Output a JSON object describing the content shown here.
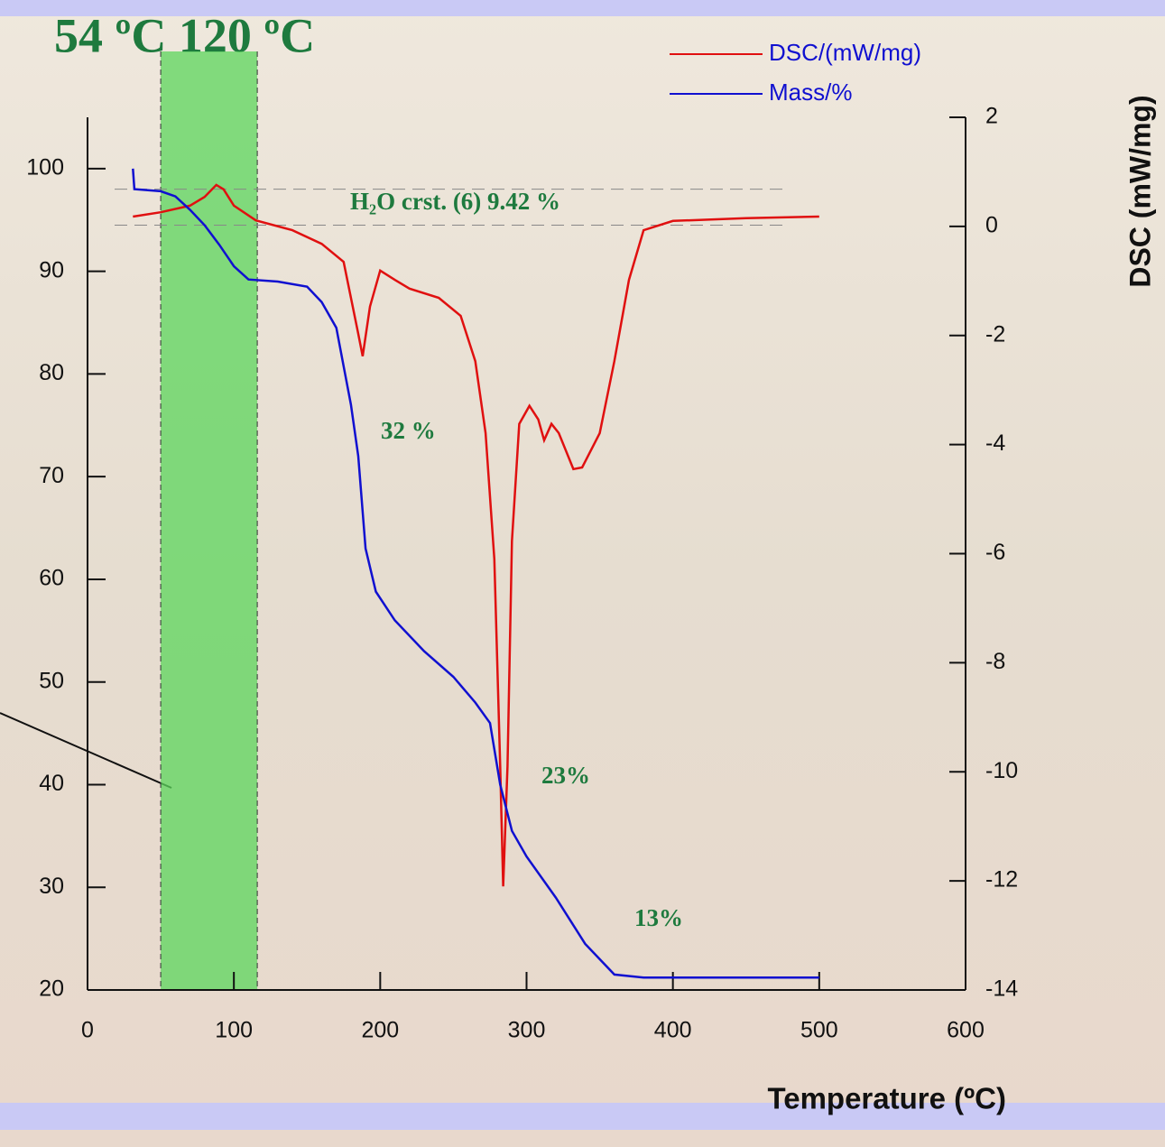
{
  "chart_data": {
    "type": "line",
    "title": "54  ºC 120  ºC",
    "x_label": "Temperature (ºC)",
    "y2_label": "DSC (mW/mg)",
    "xlim": [
      0,
      600
    ],
    "xticks": [
      0,
      100,
      200,
      300,
      400,
      500,
      600
    ],
    "ylim": [
      20,
      105
    ],
    "yticks": [
      20,
      30,
      40,
      50,
      60,
      70,
      80,
      90,
      100
    ],
    "y2lim": [
      -14,
      2
    ],
    "y2ticks": [
      -14,
      -12,
      -10,
      -8,
      -6,
      -4,
      -2,
      0,
      2
    ],
    "legend": "upper right",
    "highlight_range": [
      50,
      116
    ],
    "highlight_color": "#5cd65c",
    "reference_lines": [
      98,
      94.5
    ],
    "annotations": [
      "H₂O crst. (6) 9.42 %",
      "32 %",
      "23%",
      "13%"
    ],
    "series": [
      {
        "name": "DSC/(mW/mg)",
        "color": "#e01010",
        "axis": "y2",
        "x": [
          31,
          50,
          70,
          80,
          88,
          93,
          100,
          115,
          140,
          160,
          175,
          185,
          188,
          193,
          200,
          210,
          220,
          240,
          255,
          265,
          272,
          278,
          282,
          284,
          287,
          290,
          295,
          302,
          308,
          312,
          317,
          322,
          332,
          338,
          350,
          360,
          370,
          380,
          400,
          450,
          500
        ],
        "values": [
          0.18,
          0.26,
          0.38,
          0.54,
          0.76,
          0.68,
          0.38,
          0.11,
          -0.07,
          -0.32,
          -0.65,
          -1.97,
          -2.38,
          -1.47,
          -0.81,
          -0.98,
          -1.14,
          -1.31,
          -1.64,
          -2.47,
          -3.79,
          -6.1,
          -9.9,
          -12.1,
          -9.9,
          -5.77,
          -3.62,
          -3.29,
          -3.54,
          -3.92,
          -3.62,
          -3.79,
          -4.45,
          -4.42,
          -3.79,
          -2.47,
          -0.98,
          -0.07,
          0.1,
          0.15,
          0.18
        ]
      },
      {
        "name": "Mass/%",
        "color": "#1010d0",
        "x": [
          31,
          32,
          50,
          60,
          70,
          80,
          90,
          100,
          110,
          130,
          150,
          160,
          170,
          180,
          185,
          190,
          197,
          210,
          230,
          250,
          265,
          275,
          282,
          290,
          300,
          320,
          340,
          360,
          380,
          400,
          500
        ],
        "values": [
          100,
          98,
          97.8,
          97.3,
          96,
          94.5,
          92.6,
          90.5,
          89.2,
          89,
          88.5,
          87,
          84.5,
          77,
          72,
          63,
          58.8,
          56,
          53,
          50.5,
          48,
          46,
          40,
          35.5,
          33,
          29,
          24.5,
          21.5,
          21.2,
          21.2,
          21.2
        ]
      }
    ]
  }
}
